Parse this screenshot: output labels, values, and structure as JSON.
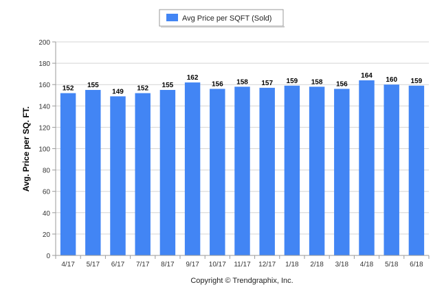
{
  "chart_data": {
    "type": "bar",
    "categories": [
      "4/17",
      "5/17",
      "6/17",
      "7/17",
      "8/17",
      "9/17",
      "10/17",
      "11/17",
      "12/17",
      "1/18",
      "2/18",
      "3/18",
      "4/18",
      "5/18",
      "6/18"
    ],
    "series": [
      {
        "name": "Avg Price per SQFT (Sold)",
        "values": [
          152,
          155,
          149,
          152,
          155,
          162,
          156,
          158,
          157,
          159,
          158,
          156,
          164,
          160,
          159
        ],
        "color": "#4285f4"
      }
    ],
    "title": "",
    "xlabel": "",
    "ylabel": "Avg. Price per SQ. FT.",
    "ylim": [
      0,
      200
    ],
    "yticks": [
      0,
      20,
      40,
      60,
      80,
      100,
      120,
      140,
      160,
      180,
      200
    ],
    "grid": true,
    "legend_position": "top-center",
    "data_labels": true
  },
  "footer": {
    "copyright": "Copyright © Trendgraphix, Inc."
  }
}
